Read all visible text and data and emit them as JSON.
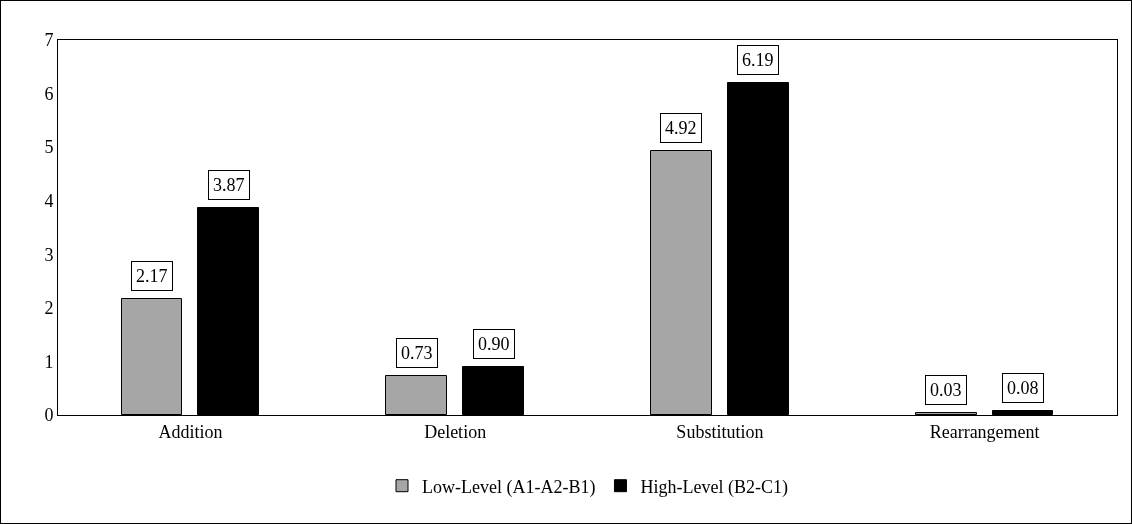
{
  "chart_data": {
    "type": "bar",
    "categories": [
      "Addition",
      "Deletion",
      "Substitution",
      "Rearrangement"
    ],
    "series": [
      {
        "name": "Low-Level (A1-A2-B1)",
        "color": "#a6a6a6",
        "values": [
          2.17,
          0.73,
          4.92,
          0.03
        ],
        "value_labels": [
          "2.17",
          "0.73",
          "4.92",
          "0.03"
        ]
      },
      {
        "name": "High-Level (B2-C1)",
        "color": "#000000",
        "values": [
          3.87,
          0.9,
          6.19,
          0.08
        ],
        "value_labels": [
          "3.87",
          "0.90",
          "6.19",
          "0.08"
        ]
      }
    ],
    "ylim": [
      0,
      7
    ],
    "yticks": [
      0,
      1,
      2,
      3,
      4,
      5,
      6,
      7
    ],
    "grid": false,
    "legend": "bottom"
  }
}
